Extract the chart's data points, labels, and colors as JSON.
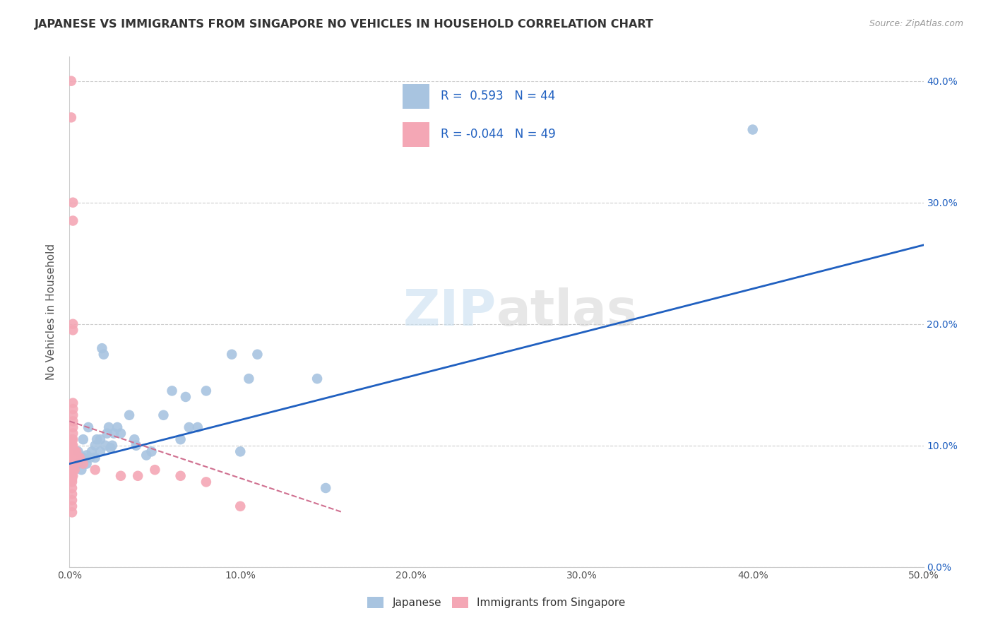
{
  "title": "JAPANESE VS IMMIGRANTS FROM SINGAPORE NO VEHICLES IN HOUSEHOLD CORRELATION CHART",
  "source": "Source: ZipAtlas.com",
  "ylabel": "No Vehicles in Household",
  "legend_r_blue": "0.593",
  "legend_n_blue": "44",
  "legend_r_pink": "-0.044",
  "legend_n_pink": "49",
  "legend_label_blue": "Japanese",
  "legend_label_pink": "Immigrants from Singapore",
  "blue_color": "#a8c4e0",
  "pink_color": "#f4a7b5",
  "blue_line_color": "#2060c0",
  "pink_line_color": "#d07090",
  "watermark_zip": "ZIP",
  "watermark_atlas": "atlas",
  "blue_scatter": [
    [
      0.5,
      9.5
    ],
    [
      0.5,
      8.5
    ],
    [
      0.7,
      8.0
    ],
    [
      0.8,
      9.0
    ],
    [
      0.8,
      10.5
    ],
    [
      1.0,
      8.5
    ],
    [
      1.0,
      9.2
    ],
    [
      1.1,
      11.5
    ],
    [
      1.2,
      9.0
    ],
    [
      1.3,
      9.5
    ],
    [
      1.5,
      9.0
    ],
    [
      1.5,
      10.0
    ],
    [
      1.6,
      10.5
    ],
    [
      1.8,
      9.5
    ],
    [
      1.8,
      10.5
    ],
    [
      1.9,
      18.0
    ],
    [
      2.0,
      17.5
    ],
    [
      2.1,
      10.0
    ],
    [
      2.2,
      11.0
    ],
    [
      2.3,
      11.5
    ],
    [
      2.4,
      9.8
    ],
    [
      2.5,
      10.0
    ],
    [
      2.6,
      11.0
    ],
    [
      2.8,
      11.5
    ],
    [
      3.0,
      11.0
    ],
    [
      3.5,
      12.5
    ],
    [
      3.8,
      10.5
    ],
    [
      3.9,
      10.0
    ],
    [
      4.5,
      9.2
    ],
    [
      4.8,
      9.5
    ],
    [
      5.5,
      12.5
    ],
    [
      6.0,
      14.5
    ],
    [
      6.5,
      10.5
    ],
    [
      6.8,
      14.0
    ],
    [
      7.0,
      11.5
    ],
    [
      7.5,
      11.5
    ],
    [
      8.0,
      14.5
    ],
    [
      9.5,
      17.5
    ],
    [
      10.0,
      9.5
    ],
    [
      10.5,
      15.5
    ],
    [
      11.0,
      17.5
    ],
    [
      14.5,
      15.5
    ],
    [
      15.0,
      6.5
    ],
    [
      40.0,
      36.0
    ]
  ],
  "pink_scatter": [
    [
      0.1,
      40.0
    ],
    [
      0.1,
      37.0
    ],
    [
      0.15,
      10.5
    ],
    [
      0.15,
      10.0
    ],
    [
      0.15,
      9.5
    ],
    [
      0.15,
      9.2
    ],
    [
      0.15,
      9.0
    ],
    [
      0.15,
      8.5
    ],
    [
      0.15,
      8.0
    ],
    [
      0.15,
      7.5
    ],
    [
      0.15,
      7.2
    ],
    [
      0.15,
      7.0
    ],
    [
      0.15,
      6.5
    ],
    [
      0.15,
      6.0
    ],
    [
      0.15,
      5.5
    ],
    [
      0.15,
      5.0
    ],
    [
      0.15,
      4.5
    ],
    [
      0.2,
      30.0
    ],
    [
      0.2,
      28.5
    ],
    [
      0.2,
      20.0
    ],
    [
      0.2,
      19.5
    ],
    [
      0.2,
      13.5
    ],
    [
      0.2,
      13.0
    ],
    [
      0.2,
      12.5
    ],
    [
      0.2,
      12.0
    ],
    [
      0.2,
      11.5
    ],
    [
      0.2,
      11.0
    ],
    [
      0.2,
      10.5
    ],
    [
      0.2,
      10.0
    ],
    [
      0.2,
      9.5
    ],
    [
      0.2,
      9.0
    ],
    [
      0.2,
      8.5
    ],
    [
      0.2,
      8.0
    ],
    [
      0.2,
      7.5
    ],
    [
      0.3,
      9.5
    ],
    [
      0.3,
      9.0
    ],
    [
      0.3,
      8.5
    ],
    [
      0.3,
      8.0
    ],
    [
      0.4,
      9.5
    ],
    [
      0.5,
      9.0
    ],
    [
      0.6,
      9.0
    ],
    [
      0.8,
      8.5
    ],
    [
      1.5,
      8.0
    ],
    [
      3.0,
      7.5
    ],
    [
      4.0,
      7.5
    ],
    [
      5.0,
      8.0
    ],
    [
      6.5,
      7.5
    ],
    [
      8.0,
      7.0
    ],
    [
      10.0,
      5.0
    ]
  ],
  "xlim": [
    0,
    50
  ],
  "ylim": [
    0,
    42
  ],
  "blue_line_x": [
    0,
    50
  ],
  "blue_line_y": [
    8.5,
    26.5
  ],
  "pink_line_x": [
    0,
    16
  ],
  "pink_line_y": [
    12.0,
    4.5
  ],
  "xtick_vals": [
    0,
    10,
    20,
    30,
    40,
    50
  ],
  "ytick_vals": [
    0,
    10,
    20,
    30,
    40
  ]
}
